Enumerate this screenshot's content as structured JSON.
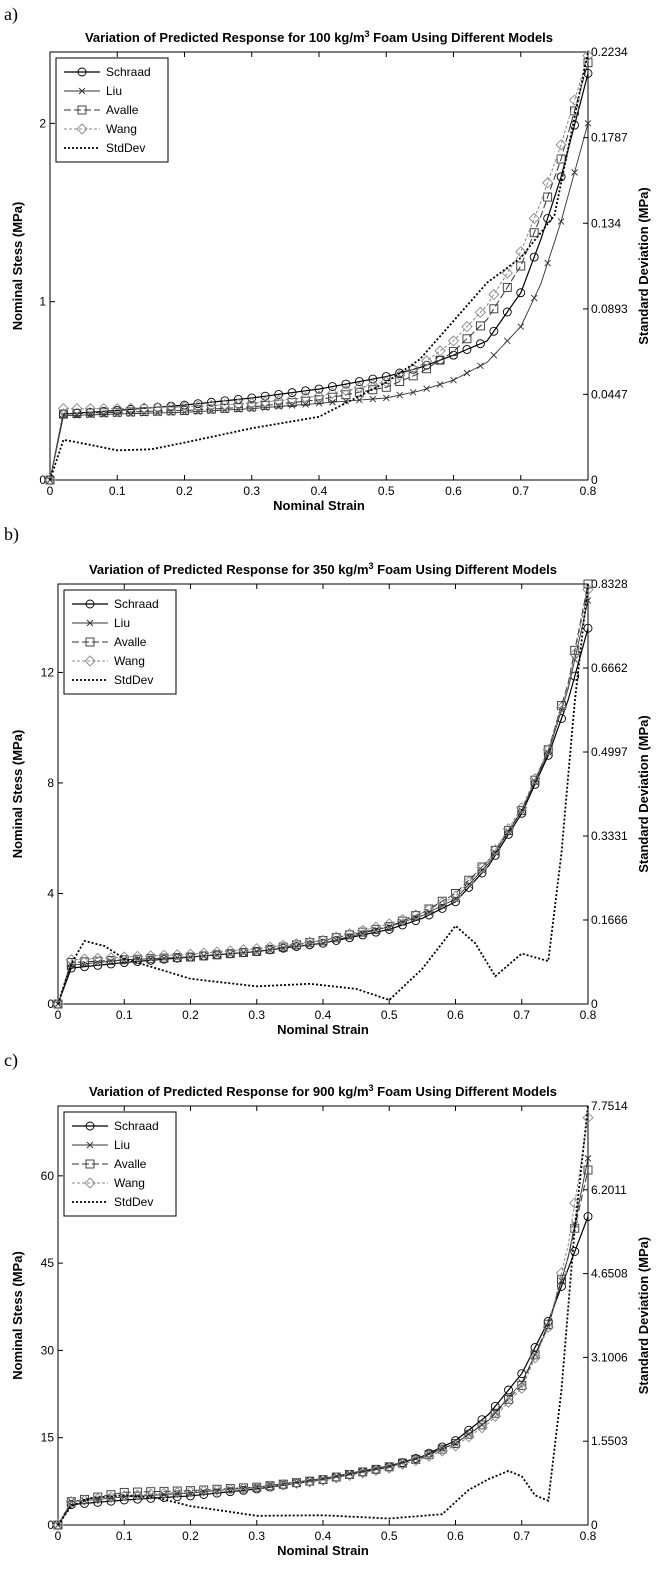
{
  "chart_data": [
    {
      "panel_label": "a)",
      "type": "line",
      "title_parts": [
        "Variation of Predicted Response for 100 kg/m",
        "3",
        " Foam Using Different Models"
      ],
      "xlabel": "Nominal Strain",
      "ylabel": "Nominal Stess (MPa)",
      "y2label": "Standard Deviation (MPa)",
      "xlim": [
        0,
        0.8
      ],
      "ylim": [
        0,
        2.4
      ],
      "y2lim": [
        0,
        0.2234
      ],
      "xticks": [
        "0",
        "0.1",
        "0.2",
        "0.3",
        "0.4",
        "0.5",
        "0.6",
        "0.7",
        "0.8"
      ],
      "xtick_values": [
        0,
        0.1,
        0.2,
        0.3,
        0.4,
        0.5,
        0.6,
        0.7,
        0.8
      ],
      "yticks": [
        "0",
        "1",
        "2"
      ],
      "ytick_values": [
        0,
        1,
        2
      ],
      "y2ticks": [
        "0",
        "0.0447",
        "0.0893",
        "0.134",
        "0.1787",
        "0.2234"
      ],
      "y2tick_values": [
        0,
        0.0447,
        0.0893,
        0.134,
        0.1787,
        0.2234
      ],
      "legend": {
        "placement": "top-left",
        "entries": [
          "Schraad",
          "Liu",
          "Avalle",
          "Wang",
          "StdDev"
        ]
      },
      "series": [
        {
          "name": "Schraad",
          "x": [
            0,
            0.02,
            0.1,
            0.2,
            0.3,
            0.4,
            0.5,
            0.55,
            0.6,
            0.65,
            0.7,
            0.73,
            0.76,
            0.8
          ],
          "y": [
            0,
            0.37,
            0.39,
            0.42,
            0.46,
            0.51,
            0.58,
            0.63,
            0.7,
            0.78,
            1.05,
            1.35,
            1.7,
            2.28
          ]
        },
        {
          "name": "Liu",
          "x": [
            0,
            0.02,
            0.1,
            0.2,
            0.3,
            0.4,
            0.5,
            0.55,
            0.6,
            0.65,
            0.7,
            0.73,
            0.76,
            0.8
          ],
          "y": [
            0,
            0.36,
            0.37,
            0.38,
            0.4,
            0.43,
            0.46,
            0.5,
            0.56,
            0.66,
            0.86,
            1.1,
            1.45,
            2.0
          ]
        },
        {
          "name": "Avalle",
          "x": [
            0,
            0.02,
            0.1,
            0.2,
            0.3,
            0.4,
            0.5,
            0.55,
            0.6,
            0.65,
            0.7,
            0.73,
            0.76,
            0.8
          ],
          "y": [
            0,
            0.37,
            0.38,
            0.39,
            0.41,
            0.45,
            0.52,
            0.6,
            0.72,
            0.9,
            1.2,
            1.48,
            1.8,
            2.34
          ]
        },
        {
          "name": "Wang",
          "x": [
            0,
            0.02,
            0.1,
            0.2,
            0.3,
            0.4,
            0.5,
            0.55,
            0.6,
            0.65,
            0.7,
            0.73,
            0.76,
            0.8
          ],
          "y": [
            0,
            0.4,
            0.4,
            0.41,
            0.43,
            0.47,
            0.55,
            0.64,
            0.78,
            0.98,
            1.28,
            1.56,
            1.88,
            2.38
          ]
        },
        {
          "name": "StdDev",
          "axis": "right",
          "x": [
            0,
            0.02,
            0.05,
            0.1,
            0.15,
            0.2,
            0.3,
            0.4,
            0.5,
            0.55,
            0.6,
            0.65,
            0.7,
            0.75,
            0.8
          ],
          "y": [
            0,
            0.021,
            0.019,
            0.0155,
            0.016,
            0.0195,
            0.027,
            0.033,
            0.051,
            0.063,
            0.083,
            0.103,
            0.116,
            0.138,
            0.2234
          ]
        }
      ]
    },
    {
      "panel_label": "b)",
      "type": "line",
      "title_parts": [
        "Variation of Predicted Response for 350 kg/m",
        "3",
        " Foam Using Different Models"
      ],
      "xlabel": "Nominal Strain",
      "ylabel": "Nominal Stess (MPa)",
      "y2label": "Standard Deviation (MPa)",
      "xlim": [
        0,
        0.8
      ],
      "ylim": [
        0,
        15.2
      ],
      "y2lim": [
        0,
        0.8328
      ],
      "xticks": [
        "0",
        "0.1",
        "0.2",
        "0.3",
        "0.4",
        "0.5",
        "0.6",
        "0.7",
        "0.8"
      ],
      "xtick_values": [
        0,
        0.1,
        0.2,
        0.3,
        0.4,
        0.5,
        0.6,
        0.7,
        0.8
      ],
      "yticks": [
        "0",
        "4",
        "8",
        "12"
      ],
      "ytick_values": [
        0,
        4,
        8,
        12
      ],
      "y2ticks": [
        "0",
        "0.1666",
        "0.3331",
        "0.4997",
        "0.6662",
        "0.8328"
      ],
      "y2tick_values": [
        0,
        0.1666,
        0.3331,
        0.4997,
        0.6662,
        0.8328
      ],
      "legend": {
        "placement": "top-left",
        "entries": [
          "Schraad",
          "Liu",
          "Avalle",
          "Wang",
          "StdDev"
        ]
      },
      "series": [
        {
          "name": "Schraad",
          "x": [
            0,
            0.02,
            0.1,
            0.2,
            0.3,
            0.4,
            0.5,
            0.55,
            0.6,
            0.65,
            0.7,
            0.74,
            0.77,
            0.8
          ],
          "y": [
            0,
            1.3,
            1.5,
            1.7,
            1.9,
            2.2,
            2.7,
            3.1,
            3.7,
            5.0,
            6.9,
            9.0,
            11.0,
            13.6
          ]
        },
        {
          "name": "Liu",
          "x": [
            0,
            0.02,
            0.1,
            0.2,
            0.3,
            0.4,
            0.5,
            0.55,
            0.6,
            0.65,
            0.7,
            0.74,
            0.77,
            0.8
          ],
          "y": [
            0,
            1.4,
            1.6,
            1.7,
            1.9,
            2.2,
            2.8,
            3.2,
            3.8,
            5.1,
            7.0,
            9.1,
            11.4,
            14.6
          ]
        },
        {
          "name": "Avalle",
          "x": [
            0,
            0.02,
            0.1,
            0.2,
            0.3,
            0.4,
            0.5,
            0.55,
            0.6,
            0.65,
            0.7,
            0.74,
            0.77,
            0.8
          ],
          "y": [
            0,
            1.5,
            1.6,
            1.7,
            1.9,
            2.3,
            2.8,
            3.3,
            4.0,
            5.2,
            7.0,
            9.2,
            11.6,
            15.2
          ]
        },
        {
          "name": "Wang",
          "x": [
            0,
            0.02,
            0.1,
            0.2,
            0.3,
            0.4,
            0.5,
            0.55,
            0.6,
            0.65,
            0.7,
            0.74,
            0.77,
            0.8
          ],
          "y": [
            0,
            1.6,
            1.7,
            1.8,
            2.0,
            2.3,
            2.9,
            3.3,
            3.9,
            5.2,
            7.1,
            9.2,
            11.5,
            15.0
          ]
        },
        {
          "name": "StdDev",
          "axis": "right",
          "x": [
            0,
            0.02,
            0.04,
            0.07,
            0.1,
            0.15,
            0.2,
            0.3,
            0.38,
            0.45,
            0.5,
            0.55,
            0.6,
            0.63,
            0.66,
            0.7,
            0.74,
            0.76,
            0.78,
            0.8
          ],
          "y": [
            0,
            0.08,
            0.125,
            0.115,
            0.09,
            0.07,
            0.05,
            0.035,
            0.04,
            0.03,
            0.008,
            0.07,
            0.155,
            0.12,
            0.055,
            0.1,
            0.085,
            0.3,
            0.6,
            0.8328
          ]
        }
      ]
    },
    {
      "panel_label": "c)",
      "type": "line",
      "title_parts": [
        "Variation of Predicted Response for 900 kg/m",
        "3",
        " Foam Using Different Models"
      ],
      "xlabel": "Nominal Strain",
      "ylabel": "Nominal Stess (MPa)",
      "y2label": "Standard Deviation (MPa)",
      "xlim": [
        0,
        0.8
      ],
      "ylim": [
        0,
        72
      ],
      "y2lim": [
        0,
        7.7514
      ],
      "xticks": [
        "0",
        "0.1",
        "0.2",
        "0.3",
        "0.4",
        "0.5",
        "0.6",
        "0.7",
        "0.8"
      ],
      "xtick_values": [
        0,
        0.1,
        0.2,
        0.3,
        0.4,
        0.5,
        0.6,
        0.7,
        0.8
      ],
      "yticks": [
        "0",
        "15",
        "30",
        "45",
        "60"
      ],
      "ytick_values": [
        0,
        15,
        30,
        45,
        60
      ],
      "y2ticks": [
        "0",
        "1.5503",
        "3.1006",
        "4.6508",
        "6.2011",
        "7.7514"
      ],
      "y2tick_values": [
        0,
        1.5503,
        3.1006,
        4.6508,
        6.2011,
        7.7514
      ],
      "legend": {
        "placement": "top-left",
        "entries": [
          "Schraad",
          "Liu",
          "Avalle",
          "Wang",
          "StdDev"
        ]
      },
      "series": [
        {
          "name": "Schraad",
          "x": [
            0,
            0.02,
            0.1,
            0.2,
            0.3,
            0.4,
            0.5,
            0.55,
            0.6,
            0.65,
            0.7,
            0.74,
            0.77,
            0.8
          ],
          "y": [
            0,
            3.5,
            4.3,
            5.0,
            6.2,
            7.8,
            10.0,
            11.8,
            14.5,
            19.0,
            26.0,
            35.0,
            44.0,
            53.0
          ]
        },
        {
          "name": "Liu",
          "x": [
            0,
            0.02,
            0.1,
            0.2,
            0.3,
            0.4,
            0.5,
            0.55,
            0.6,
            0.65,
            0.7,
            0.74,
            0.77,
            0.8
          ],
          "y": [
            0,
            4.0,
            4.8,
            5.5,
            6.5,
            8.0,
            10.2,
            11.8,
            14.0,
            18.0,
            24.5,
            34.0,
            46.0,
            63.0
          ]
        },
        {
          "name": "Avalle",
          "x": [
            0,
            0.02,
            0.1,
            0.2,
            0.3,
            0.4,
            0.5,
            0.55,
            0.6,
            0.65,
            0.7,
            0.74,
            0.77,
            0.8
          ],
          "y": [
            0,
            4.0,
            5.6,
            5.9,
            6.5,
            7.8,
            10.0,
            11.6,
            14.0,
            18.0,
            24.0,
            34.5,
            46.0,
            61.0
          ]
        },
        {
          "name": "Wang",
          "x": [
            0,
            0.02,
            0.1,
            0.2,
            0.3,
            0.4,
            0.5,
            0.55,
            0.6,
            0.65,
            0.7,
            0.74,
            0.77,
            0.8
          ],
          "y": [
            0,
            4.0,
            5.0,
            5.7,
            6.4,
            7.7,
            9.8,
            11.4,
            13.6,
            17.5,
            23.5,
            34.0,
            48.0,
            70.0
          ]
        },
        {
          "name": "StdDev",
          "axis": "right",
          "x": [
            0,
            0.02,
            0.05,
            0.1,
            0.15,
            0.2,
            0.3,
            0.4,
            0.5,
            0.58,
            0.62,
            0.65,
            0.68,
            0.7,
            0.72,
            0.74,
            0.76,
            0.78,
            0.8
          ],
          "y": [
            0,
            0.35,
            0.5,
            0.55,
            0.5,
            0.35,
            0.17,
            0.18,
            0.12,
            0.2,
            0.65,
            0.85,
            1.0,
            0.9,
            0.55,
            0.45,
            2.5,
            5.5,
            7.7514
          ]
        }
      ]
    }
  ]
}
